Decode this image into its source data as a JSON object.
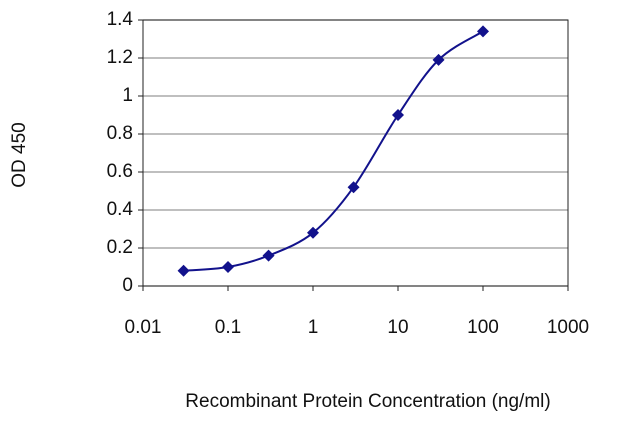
{
  "chart_data": {
    "type": "line",
    "xlabel": "Recombinant Protein Concentration (ng/ml)",
    "ylabel": "OD 450",
    "x": [
      0.03,
      0.1,
      0.3,
      1,
      3,
      10,
      30,
      100
    ],
    "series": [
      {
        "color": "#12128c",
        "values": [
          0.08,
          0.1,
          0.16,
          0.28,
          0.52,
          0.9,
          1.19,
          1.34
        ]
      }
    ],
    "xscale": "log",
    "xlim": [
      0.01,
      1000
    ],
    "xticks": [
      0.01,
      0.1,
      1,
      10,
      100,
      1000
    ],
    "ylim": [
      0,
      1.4
    ],
    "yticks": [
      0,
      0.2,
      0.4,
      0.6,
      0.8,
      1,
      1.2,
      1.4
    ],
    "grid": true,
    "marker": "diamond"
  }
}
